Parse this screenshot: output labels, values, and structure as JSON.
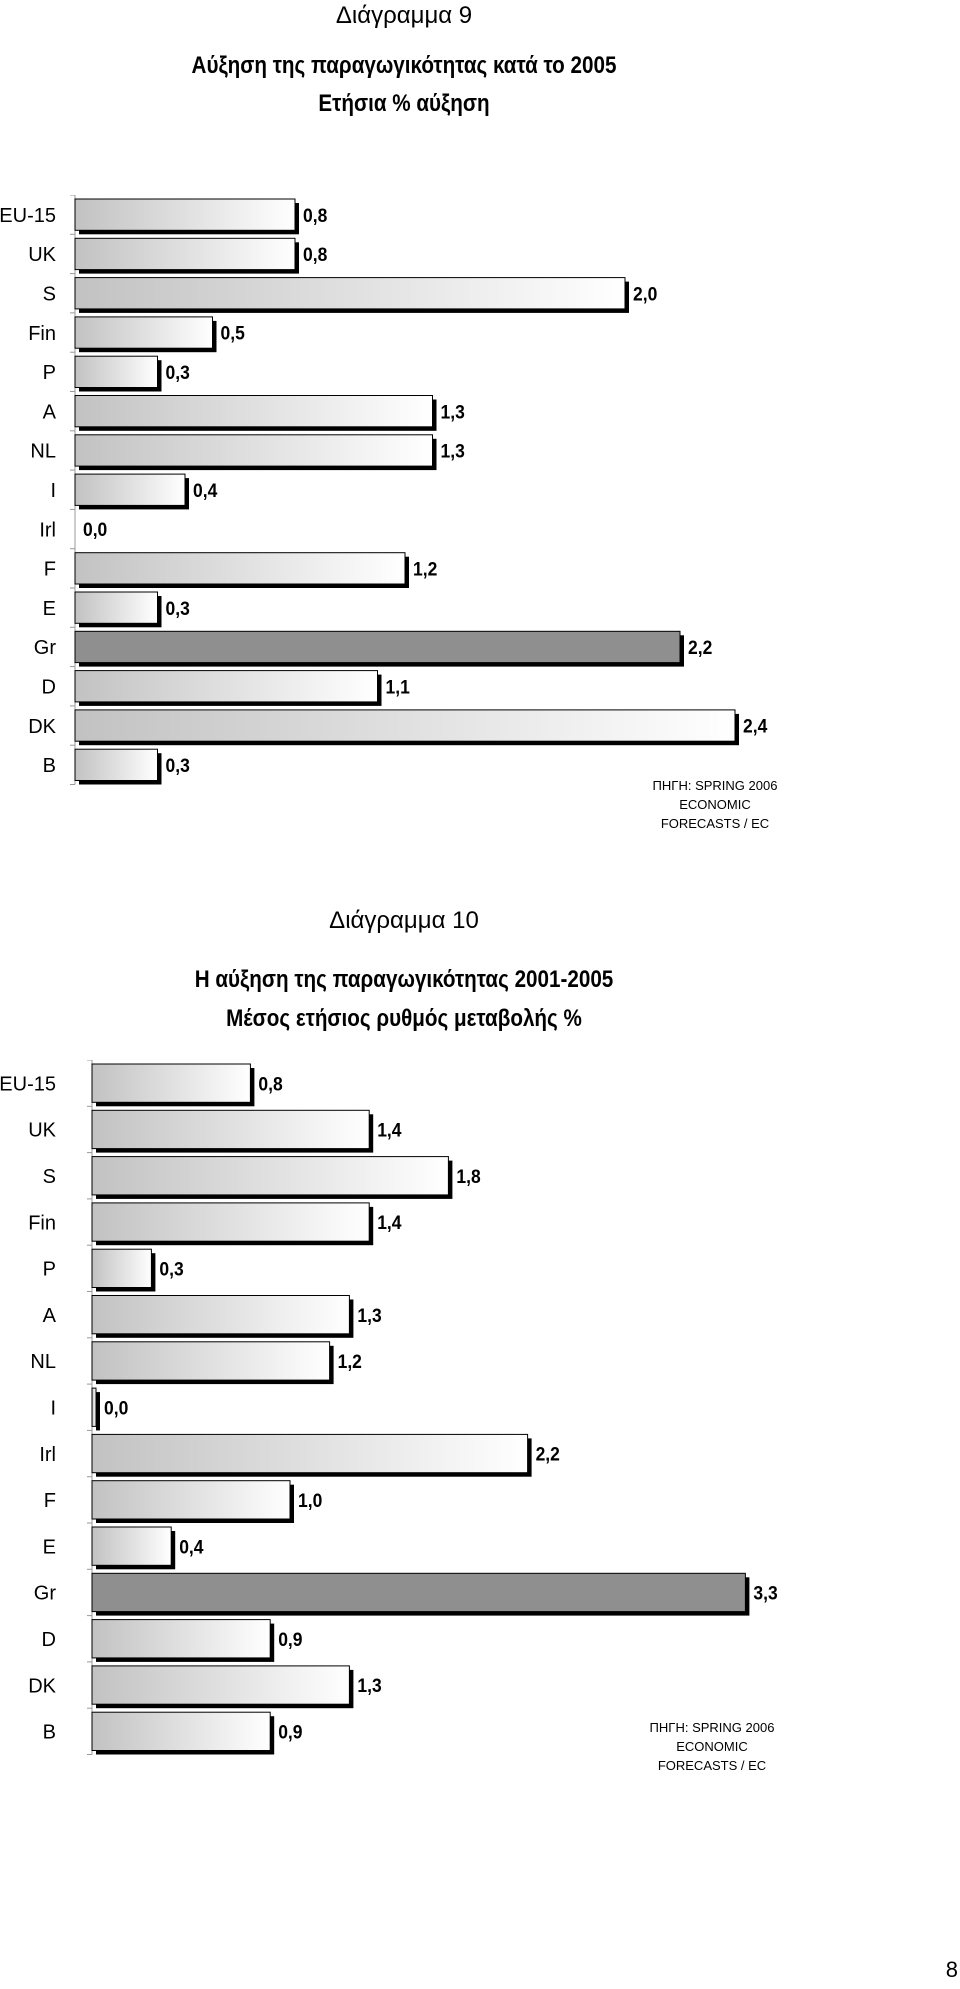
{
  "chart_data": [
    {
      "type": "bar",
      "orientation": "horizontal",
      "heading": "Διάγραμμα 9",
      "title": "Αύξηση της παραγωγικότητας κατά το 2005",
      "subtitle": "Ετήσια % αύξηση",
      "categories": [
        "EU-15",
        "UK",
        "S",
        "Fin",
        "P",
        "A",
        "NL",
        "I",
        "Irl",
        "F",
        "E",
        "Gr",
        "D",
        "DK",
        "B"
      ],
      "values": [
        0.8,
        0.8,
        2.0,
        0.5,
        0.3,
        1.3,
        1.3,
        0.4,
        0.0,
        1.2,
        0.3,
        2.2,
        1.1,
        2.4,
        0.3
      ],
      "value_labels": [
        "0,8",
        "0,8",
        "2,0",
        "0,5",
        "0,3",
        "1,3",
        "1,3",
        "0,4",
        "0,0",
        "1,2",
        "0,3",
        "2,2",
        "1,1",
        "2,4",
        "0,3"
      ],
      "highlight_category": "Gr",
      "bar_color": "#e6e6e6",
      "highlight_color": "#8f8f8f",
      "xlim": [
        0,
        2.8
      ],
      "source": [
        "ΠΗΓΗ: SPRING 2006",
        "ECONOMIC",
        "FORECASTS / EC"
      ]
    },
    {
      "type": "bar",
      "orientation": "horizontal",
      "heading": "Διάγραμμα 10",
      "title": "Η αύξηση της παραγωγικότητας 2001-2005",
      "subtitle": "Μέσος ετήσιος ρυθμός μεταβολής %",
      "categories": [
        "EU-15",
        "UK",
        "S",
        "Fin",
        "P",
        "A",
        "NL",
        "I",
        "Irl",
        "F",
        "E",
        "Gr",
        "D",
        "DK",
        "B"
      ],
      "values": [
        0.8,
        1.4,
        1.8,
        1.4,
        0.3,
        1.3,
        1.2,
        0.0,
        2.2,
        1.0,
        0.4,
        3.3,
        0.9,
        1.3,
        0.9
      ],
      "value_labels": [
        "0,8",
        "1,4",
        "1,8",
        "1,4",
        "0,3",
        "1,3",
        "1,2",
        "0,0",
        "2,2",
        "1,0",
        "0,4",
        "3,3",
        "0,9",
        "1,3",
        "0,9"
      ],
      "highlight_category": "Gr",
      "bar_color": "#e6e6e6",
      "highlight_color": "#8f8f8f",
      "xlim": [
        0,
        3.5
      ],
      "source": [
        "ΠΗΓΗ: SPRING 2006",
        "ECONOMIC",
        "FORECASTS / EC"
      ]
    }
  ],
  "page_number": "8"
}
